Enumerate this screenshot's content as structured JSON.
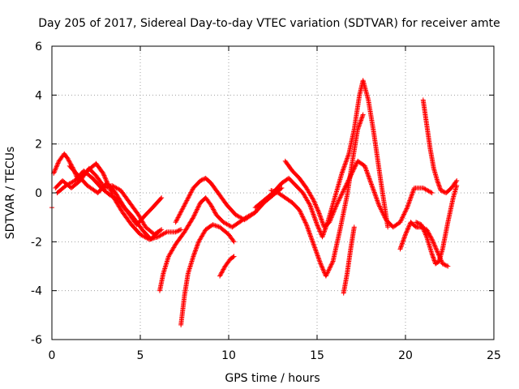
{
  "chart_data": {
    "type": "scatter",
    "title": "Day 205 of 2017, Sidereal Day-to-day VTEC variation (SDTVAR) for receiver amte",
    "xlabel": "GPS time / hours",
    "ylabel": "SDTVAR / TECUs",
    "xlim": [
      0,
      25
    ],
    "ylim": [
      -6,
      6
    ],
    "xticks": [
      0,
      5,
      10,
      15,
      20,
      25
    ],
    "yticks": [
      -6,
      -4,
      -2,
      0,
      2,
      4,
      6
    ],
    "xtick_labels": [
      "0",
      "5",
      "10",
      "15",
      "20",
      "25"
    ],
    "ytick_labels": [
      "-6",
      "-4",
      "-2",
      "0",
      "2",
      "4",
      "6"
    ],
    "grid": true,
    "legend": "none",
    "marker": "+",
    "series": [
      {
        "name": "arc-1",
        "color": "#ff0000",
        "x": [
          0.1,
          0.4,
          0.7,
          0.9,
          1.2,
          1.5,
          2.0,
          2.5,
          2.9,
          3.2,
          3.5,
          4.0,
          4.5,
          5.0,
          5.5,
          6.0,
          6.5,
          7.0,
          7.3
        ],
        "y": [
          0.8,
          1.3,
          1.6,
          1.4,
          1.0,
          0.5,
          0.9,
          1.2,
          0.8,
          0.3,
          -0.2,
          -0.8,
          -1.3,
          -1.7,
          -1.9,
          -1.8,
          -1.6,
          -1.6,
          -1.5
        ]
      },
      {
        "name": "arc-2",
        "color": "#ff0000",
        "x": [
          0.2,
          0.6,
          1.1,
          1.6,
          2.1,
          2.5,
          3.0,
          3.4,
          3.9,
          4.4,
          4.9,
          5.3,
          5.8,
          6.2
        ],
        "y": [
          0.2,
          0.5,
          0.2,
          0.5,
          1.0,
          0.7,
          0.2,
          0.3,
          0.1,
          -0.4,
          -0.9,
          -1.4,
          -1.7,
          -1.5
        ]
      },
      {
        "name": "arc-3",
        "color": "#ff0000",
        "x": [
          0.3,
          0.8,
          1.3,
          1.8,
          2.3,
          2.8,
          3.3,
          3.8,
          4.3,
          4.8,
          5.3,
          5.7,
          6.2
        ],
        "y": [
          0.0,
          0.3,
          0.5,
          0.9,
          0.6,
          0.2,
          -0.1,
          -0.3,
          -0.8,
          -1.3,
          -0.9,
          -0.6,
          -0.2
        ]
      },
      {
        "name": "arc-4",
        "color": "#ff0000",
        "x": [
          1.0,
          1.5,
          2.0,
          2.6,
          3.1,
          3.6,
          4.1,
          4.6,
          5.1,
          5.6,
          6.0
        ],
        "y": [
          1.1,
          0.7,
          0.3,
          0.0,
          0.4,
          0.0,
          -0.6,
          -1.0,
          -1.5,
          -1.9,
          -1.6
        ]
      },
      {
        "name": "arc-5",
        "color": "#ff0000",
        "x": [
          6.1,
          6.3,
          6.6,
          7.0,
          7.5,
          8.0,
          8.4,
          8.7,
          9.0,
          9.3,
          9.7,
          10.2,
          10.6,
          11.0,
          11.5
        ],
        "y": [
          -4.0,
          -3.3,
          -2.6,
          -2.1,
          -1.6,
          -1.0,
          -0.4,
          -0.2,
          -0.5,
          -0.9,
          -1.2,
          -1.4,
          -1.2,
          -1.0,
          -0.8
        ]
      },
      {
        "name": "arc-6",
        "color": "#ff0000",
        "x": [
          7.3,
          7.5,
          7.7,
          8.0,
          8.3,
          8.7,
          9.1,
          9.5,
          10.0,
          10.3
        ],
        "y": [
          -5.4,
          -4.2,
          -3.3,
          -2.6,
          -2.0,
          -1.5,
          -1.3,
          -1.4,
          -1.7,
          -2.0
        ]
      },
      {
        "name": "arc-7",
        "color": "#ff0000",
        "x": [
          7.0,
          7.5,
          8.0,
          8.4,
          8.7,
          9.0,
          9.4,
          9.9,
          10.4,
          10.9,
          11.5,
          12.0,
          12.5,
          13.0
        ],
        "y": [
          -1.2,
          -0.5,
          0.2,
          0.5,
          0.6,
          0.4,
          0.0,
          -0.5,
          -0.9,
          -1.1,
          -0.8,
          -0.4,
          -0.1,
          0.2
        ]
      },
      {
        "name": "arc-8",
        "color": "#ff0000",
        "x": [
          9.5,
          9.8,
          10.1,
          10.3
        ],
        "y": [
          -3.4,
          -3.0,
          -2.7,
          -2.6
        ]
      },
      {
        "name": "arc-9",
        "color": "#ff0000",
        "x": [
          11.5,
          12.0,
          12.5,
          13.0,
          13.4,
          13.8,
          14.2,
          14.6,
          15.0,
          15.3,
          15.6,
          16.0,
          16.4,
          16.8,
          17.1,
          17.4,
          17.6,
          17.9,
          18.2,
          18.6,
          19.0
        ],
        "y": [
          -0.6,
          -0.3,
          0.0,
          0.4,
          0.6,
          0.3,
          0.0,
          -0.5,
          -1.3,
          -1.8,
          -1.2,
          -0.2,
          0.8,
          1.6,
          2.6,
          4.0,
          4.6,
          3.8,
          2.5,
          0.5,
          -1.4
        ]
      },
      {
        "name": "arc-10",
        "color": "#ff0000",
        "x": [
          12.4,
          12.8,
          13.2,
          13.6,
          14.0,
          14.4,
          14.8,
          15.2,
          15.5,
          15.9,
          16.3,
          16.7,
          17.0,
          17.3,
          17.6
        ],
        "y": [
          0.1,
          0.0,
          -0.2,
          -0.4,
          -0.7,
          -1.3,
          -2.1,
          -2.9,
          -3.4,
          -2.8,
          -1.5,
          -0.1,
          1.3,
          2.6,
          3.2
        ]
      },
      {
        "name": "arc-11",
        "color": "#ff0000",
        "x": [
          13.2,
          13.6,
          14.0,
          14.4,
          14.8,
          15.1,
          15.4,
          15.7,
          16.1,
          16.5,
          16.9,
          17.3,
          17.7,
          18.1,
          18.5,
          18.9,
          19.3,
          19.7,
          20.1,
          20.5,
          21.0,
          21.5
        ],
        "y": [
          1.3,
          0.9,
          0.6,
          0.2,
          -0.3,
          -0.8,
          -1.4,
          -1.2,
          -0.5,
          0.1,
          0.7,
          1.3,
          1.1,
          0.3,
          -0.5,
          -1.1,
          -1.4,
          -1.2,
          -0.6,
          0.2,
          0.2,
          0.0
        ]
      },
      {
        "name": "arc-12",
        "color": "#ff0000",
        "x": [
          16.5,
          16.7,
          16.9,
          17.1
        ],
        "y": [
          -4.1,
          -3.3,
          -2.3,
          -1.4
        ]
      },
      {
        "name": "arc-13",
        "color": "#ff0000",
        "x": [
          19.7,
          20.0,
          20.3,
          20.6,
          20.9,
          21.2,
          21.5,
          21.8,
          22.1,
          22.4
        ],
        "y": [
          -2.3,
          -1.7,
          -1.2,
          -1.4,
          -1.4,
          -1.5,
          -1.9,
          -2.4,
          -2.9,
          -3.0
        ]
      },
      {
        "name": "arc-14",
        "color": "#ff0000",
        "x": [
          21.0,
          21.2,
          21.4,
          21.6,
          21.8,
          22.0,
          22.3,
          22.6,
          22.9
        ],
        "y": [
          3.8,
          2.8,
          1.8,
          1.0,
          0.5,
          0.1,
          0.0,
          0.2,
          0.5
        ]
      },
      {
        "name": "arc-15",
        "color": "#ff0000",
        "x": [
          20.6,
          20.9,
          21.2,
          21.5,
          21.7,
          21.9,
          22.1,
          22.4,
          22.7,
          22.9
        ],
        "y": [
          -1.2,
          -1.3,
          -1.8,
          -2.5,
          -2.9,
          -2.8,
          -2.3,
          -1.2,
          -0.2,
          0.3
        ]
      }
    ],
    "extra_points": {
      "x": [
        0.0
      ],
      "y": [
        -0.6
      ]
    }
  }
}
